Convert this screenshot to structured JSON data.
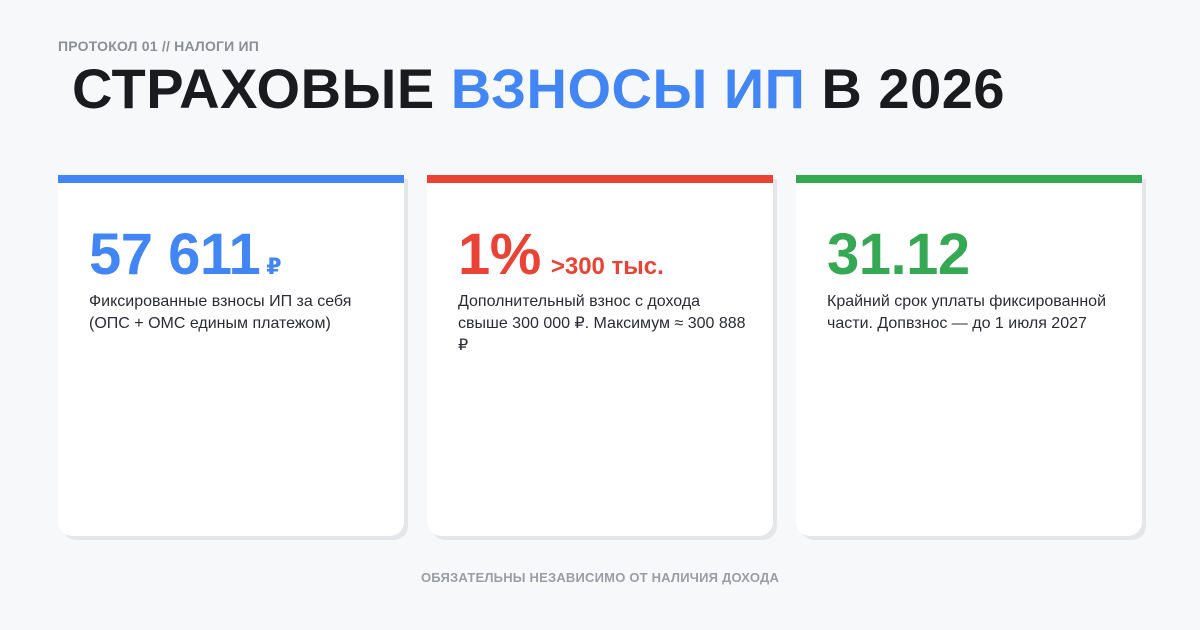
{
  "header": {
    "kicker": "ПРОТОКОЛ 01 // НАЛОГИ ИП",
    "title_part1": "СТРАХОВЫЕ ",
    "title_accent": "ВЗНОСЫ ИП",
    "title_part2": " В 2026"
  },
  "cards": [
    {
      "figure": "57 611",
      "unit": "₽",
      "description": "Фиксированные взносы ИП за себя (ОПС + ОМС единым платежом)",
      "color": "#4285f4"
    },
    {
      "figure": "1%",
      "suffix": ">300 тыс.",
      "description": "Дополнительный взнос с дохода свыше 300 000 ₽. Максимум ≈ 300 888 ₽",
      "color": "#ea4335"
    },
    {
      "figure": "31.12",
      "description": "Крайний срок уплаты фиксированной части. Допвзнос — до 1 июля 2027",
      "color": "#34a853"
    }
  ],
  "footer": {
    "note": "ОБЯЗАТЕЛЬНЫ НЕЗАВИСИМО ОТ НАЛИЧИЯ ДОХОДА"
  }
}
